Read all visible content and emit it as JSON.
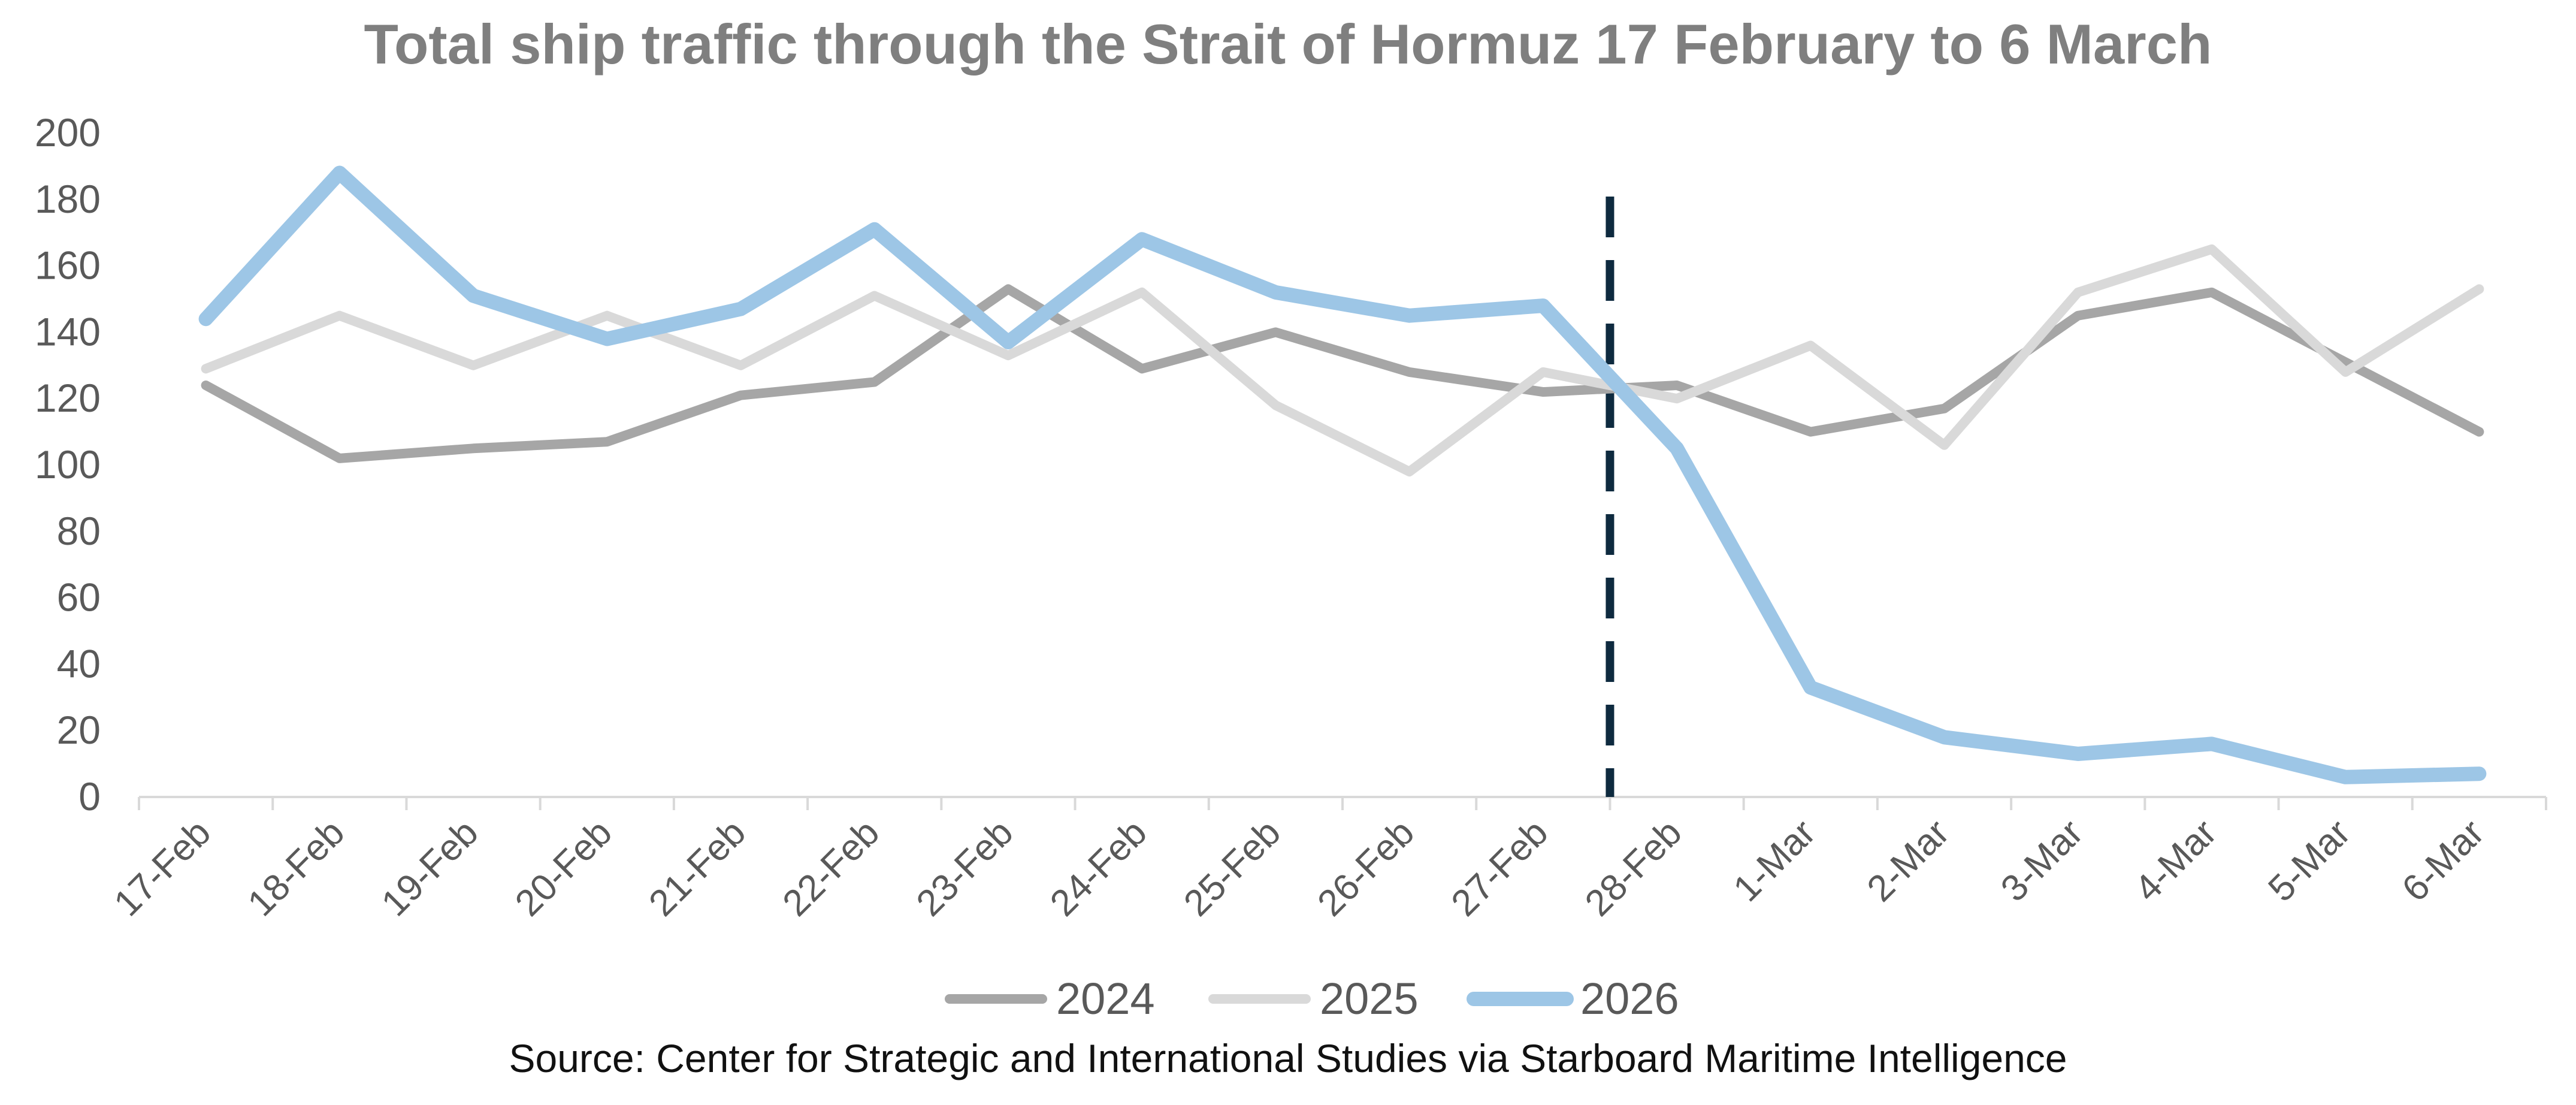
{
  "chart_data": {
    "type": "line",
    "title": "Total ship traffic through the Strait of Hormuz 17 February to 6 March",
    "source": "Source: Center for Strategic and International Studies via Starboard Maritime Intelligence",
    "xlabel": "",
    "ylabel": "",
    "categories": [
      "17-Feb",
      "18-Feb",
      "19-Feb",
      "20-Feb",
      "21-Feb",
      "22-Feb",
      "23-Feb",
      "24-Feb",
      "25-Feb",
      "26-Feb",
      "27-Feb",
      "28-Feb",
      "1-Mar",
      "2-Mar",
      "3-Mar",
      "4-Mar",
      "5-Mar",
      "6-Mar"
    ],
    "ylim": [
      0,
      200
    ],
    "yticks": [
      0,
      20,
      40,
      60,
      80,
      100,
      120,
      140,
      160,
      180,
      200
    ],
    "grid": false,
    "legend_position": "bottom",
    "marker": {
      "type": "dashed-vertical-line",
      "between": [
        "27-Feb",
        "28-Feb"
      ],
      "color": "#0e2a3f"
    },
    "series": [
      {
        "name": "2024",
        "color": "#a6a6a6",
        "values": [
          124,
          102,
          105,
          107,
          121,
          125,
          153,
          129,
          140,
          128,
          122,
          124,
          110,
          117,
          145,
          152,
          131,
          110
        ]
      },
      {
        "name": "2025",
        "color": "#d9d9d9",
        "values": [
          129,
          145,
          130,
          145,
          130,
          151,
          133,
          152,
          118,
          98,
          128,
          120,
          136,
          106,
          152,
          165,
          128,
          153
        ]
      },
      {
        "name": "2026",
        "color": "#9dc6e6",
        "values": [
          144,
          188,
          151,
          138,
          147,
          171,
          137,
          168,
          152,
          145,
          148,
          105,
          33,
          18,
          13,
          16,
          6,
          7
        ]
      }
    ]
  }
}
